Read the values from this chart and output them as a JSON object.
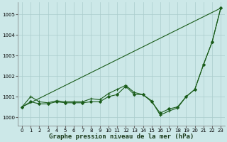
{
  "xlabel": "Graphe pression niveau de la mer (hPa)",
  "bg_color": "#cce8e8",
  "grid_color": "#aacccc",
  "line_color": "#1a5c1a",
  "x_ticks": [
    0,
    1,
    2,
    3,
    4,
    5,
    6,
    7,
    8,
    9,
    10,
    11,
    12,
    13,
    14,
    15,
    16,
    17,
    18,
    19,
    20,
    21,
    22,
    23
  ],
  "ylim": [
    999.6,
    1005.6
  ],
  "yticks": [
    1000,
    1001,
    1002,
    1003,
    1004,
    1005
  ],
  "series": [
    {
      "x": [
        0,
        23
      ],
      "y": [
        1000.5,
        1005.3
      ],
      "marker": "None",
      "lw": 0.8
    },
    {
      "x": [
        0,
        1,
        2,
        3,
        4,
        5,
        6,
        7,
        8,
        9,
        10,
        11,
        12,
        13,
        14,
        15,
        16,
        17,
        18,
        19,
        20,
        21,
        22,
        23
      ],
      "y": [
        1000.5,
        1001.0,
        1000.75,
        1000.7,
        1000.8,
        1000.75,
        1000.75,
        1000.75,
        1000.9,
        1000.85,
        1001.15,
        1001.35,
        1001.55,
        1001.2,
        1001.1,
        1000.8,
        1000.1,
        1000.3,
        1000.45,
        1001.0,
        1001.35,
        1002.55,
        1003.65,
        1005.3
      ],
      "marker": "+",
      "lw": 0.8
    },
    {
      "x": [
        0,
        1,
        2,
        3,
        4,
        5,
        6,
        7,
        8,
        9,
        10,
        11,
        12,
        13,
        14,
        15,
        16,
        17,
        18,
        19,
        20,
        21,
        22,
        23
      ],
      "y": [
        1000.5,
        1000.75,
        1000.65,
        1000.65,
        1000.75,
        1000.7,
        1000.7,
        1000.7,
        1000.75,
        1000.75,
        1001.0,
        1001.1,
        1001.5,
        1001.1,
        1001.1,
        1000.75,
        1000.2,
        1000.4,
        1000.5,
        1001.0,
        1001.35,
        1002.55,
        1003.65,
        1005.3
      ],
      "marker": "D",
      "lw": 0.8
    }
  ],
  "xlabel_fontsize": 6.5,
  "tick_fontsize": 5,
  "fig_w": 3.2,
  "fig_h": 2.0,
  "dpi": 100
}
